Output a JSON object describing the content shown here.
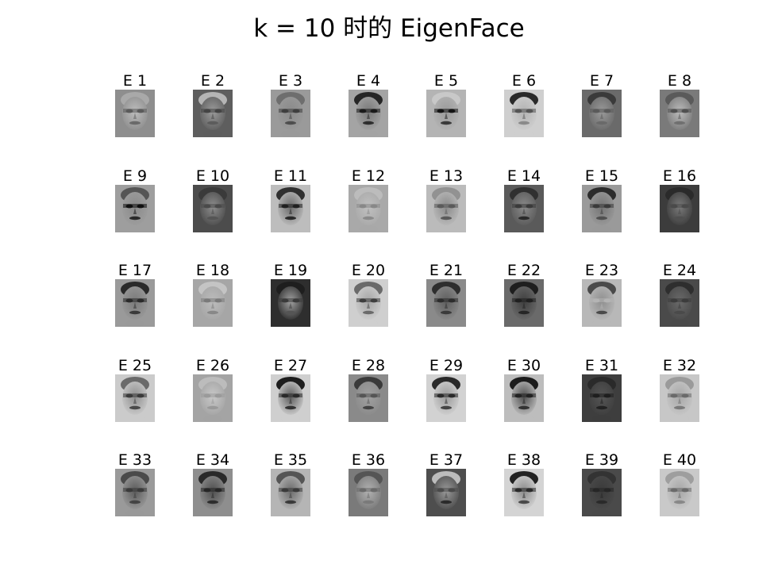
{
  "title": "k = 10 时的 EigenFace",
  "grid": {
    "rows": 5,
    "cols": 8
  },
  "faces": [
    {
      "label": "E 1",
      "bg": "#8e8e8e",
      "skin": "#bdbdbd",
      "eyes": "#5a5a5a",
      "mouth": "#6a6a6a",
      "hair": "#a9a9a9"
    },
    {
      "label": "E 2",
      "bg": "#5e5e5e",
      "skin": "#9c9c9c",
      "eyes": "#444444",
      "mouth": "#5c5c5c",
      "hair": "#b5b5b5"
    },
    {
      "label": "E 3",
      "bg": "#9a9a9a",
      "skin": "#8a8a8a",
      "eyes": "#3e3e3e",
      "mouth": "#4e4e4e",
      "hair": "#6e6e6e"
    },
    {
      "label": "E 4",
      "bg": "#a4a4a4",
      "skin": "#787878",
      "eyes": "#1a1a1a",
      "mouth": "#2e2e2e",
      "hair": "#262626"
    },
    {
      "label": "E 5",
      "bg": "#b4b4b4",
      "skin": "#9a9a9a",
      "eyes": "#141414",
      "mouth": "#3a3a3a",
      "hair": "#c8c8c8"
    },
    {
      "label": "E 6",
      "bg": "#cfcfcf",
      "skin": "#b2b2b2",
      "eyes": "#555555",
      "mouth": "#8a8a8a",
      "hair": "#2a2a2a"
    },
    {
      "label": "E 7",
      "bg": "#6a6a6a",
      "skin": "#9a9a9a",
      "eyes": "#5a5a5a",
      "mouth": "#6a6a6a",
      "hair": "#3a3a3a"
    },
    {
      "label": "E 8",
      "bg": "#7a7a7a",
      "skin": "#bcbcbc",
      "eyes": "#505050",
      "mouth": "#707070",
      "hair": "#5a5a5a"
    },
    {
      "label": "E 9",
      "bg": "#9e9e9e",
      "skin": "#8a8a8a",
      "eyes": "#101010",
      "mouth": "#2a2a2a",
      "hair": "#555555"
    },
    {
      "label": "E 10",
      "bg": "#4c4c4c",
      "skin": "#8e8e8e",
      "eyes": "#4a4a4a",
      "mouth": "#555555",
      "hair": "#3a3a3a"
    },
    {
      "label": "E 11",
      "bg": "#bdbdbd",
      "skin": "#6a6a6a",
      "eyes": "#202020",
      "mouth": "#2a2a2a",
      "hair": "#303030"
    },
    {
      "label": "E 12",
      "bg": "#a9a9a9",
      "skin": "#c0c0c0",
      "eyes": "#888888",
      "mouth": "#8a8a8a",
      "hair": "#bcbcbc"
    },
    {
      "label": "E 13",
      "bg": "#bbbbbb",
      "skin": "#8a8a8a",
      "eyes": "#5a5a5a",
      "mouth": "#5a5a5a",
      "hair": "#929292"
    },
    {
      "label": "E 14",
      "bg": "#5a5a5a",
      "skin": "#8a8a8a",
      "eyes": "#3a3a3a",
      "mouth": "#2a2a2a",
      "hair": "#303030"
    },
    {
      "label": "E 15",
      "bg": "#9a9a9a",
      "skin": "#747474",
      "eyes": "#3a3a3a",
      "mouth": "#505050",
      "hair": "#2c2c2c"
    },
    {
      "label": "E 16",
      "bg": "#3c3c3c",
      "skin": "#7a7a7a",
      "eyes": "#4a4a4a",
      "mouth": "#505050",
      "hair": "#2a2a2a"
    },
    {
      "label": "E 17",
      "bg": "#9a9a9a",
      "skin": "#7a7a7a",
      "eyes": "#2a2a2a",
      "mouth": "#3a3a3a",
      "hair": "#2a2a2a"
    },
    {
      "label": "E 18",
      "bg": "#a6a6a6",
      "skin": "#bcbcbc",
      "eyes": "#7a7a7a",
      "mouth": "#888888",
      "hair": "#c4c4c4"
    },
    {
      "label": "E 19",
      "bg": "#2e2e2e",
      "skin": "#a2a2a2",
      "eyes": "#3a3a3a",
      "mouth": "#555555",
      "hair": "#1e1e1e"
    },
    {
      "label": "E 20",
      "bg": "#cfcfcf",
      "skin": "#a5a5a5",
      "eyes": "#3e3e3e",
      "mouth": "#6a6a6a",
      "hair": "#6a6a6a"
    },
    {
      "label": "E 21",
      "bg": "#8a8a8a",
      "skin": "#5e5e5e",
      "eyes": "#2c2c2c",
      "mouth": "#3a3a3a",
      "hair": "#2e2e2e"
    },
    {
      "label": "E 22",
      "bg": "#6a6a6a",
      "skin": "#3e3e3e",
      "eyes": "#202020",
      "mouth": "#262626",
      "hair": "#1e1e1e"
    },
    {
      "label": "E 23",
      "bg": "#b8b8b8",
      "skin": "#8e8e8e",
      "eyes": "#b4b4b4",
      "mouth": "#4a4a4a",
      "hair": "#4a4a4a"
    },
    {
      "label": "E 24",
      "bg": "#4a4a4a",
      "skin": "#6a6a6a",
      "eyes": "#3c3c3c",
      "mouth": "#4a4a4a",
      "hair": "#2e2e2e"
    },
    {
      "label": "E 25",
      "bg": "#cbcbcb",
      "skin": "#8e8e8e",
      "eyes": "#3a3a3a",
      "mouth": "#4a4a4a",
      "hair": "#6a6a6a"
    },
    {
      "label": "E 26",
      "bg": "#a4a4a4",
      "skin": "#c8c8c8",
      "eyes": "#9a9a9a",
      "mouth": "#999999",
      "hair": "#bcbcbc"
    },
    {
      "label": "E 27",
      "bg": "#cfcfcf",
      "skin": "#5a5a5a",
      "eyes": "#2a2a2a",
      "mouth": "#333333",
      "hair": "#1e1e1e"
    },
    {
      "label": "E 28",
      "bg": "#8a8a8a",
      "skin": "#a0a0a0",
      "eyes": "#555555",
      "mouth": "#444444",
      "hair": "#3a3a3a"
    },
    {
      "label": "E 29",
      "bg": "#d2d2d2",
      "skin": "#9a9a9a",
      "eyes": "#2a2a2a",
      "mouth": "#444444",
      "hair": "#2a2a2a"
    },
    {
      "label": "E 30",
      "bg": "#bdbdbd",
      "skin": "#4e4e4e",
      "eyes": "#222222",
      "mouth": "#333333",
      "hair": "#1c1c1c"
    },
    {
      "label": "E 31",
      "bg": "#3e3e3e",
      "skin": "#555555",
      "eyes": "#1e1e1e",
      "mouth": "#222222",
      "hair": "#2a2a2a"
    },
    {
      "label": "E 32",
      "bg": "#c7c7c7",
      "skin": "#a7a7a7",
      "eyes": "#6a6a6a",
      "mouth": "#7a7a7a",
      "hair": "#9a9a9a"
    },
    {
      "label": "E 33",
      "bg": "#9a9a9a",
      "skin": "#5a5a5a",
      "eyes": "#3a3a3a",
      "mouth": "#444444",
      "hair": "#4a4a4a"
    },
    {
      "label": "E 34",
      "bg": "#8e8e8e",
      "skin": "#4e4e4e",
      "eyes": "#262626",
      "mouth": "#2c2c2c",
      "hair": "#2a2a2a"
    },
    {
      "label": "E 35",
      "bg": "#b5b5b5",
      "skin": "#6a6a6a",
      "eyes": "#3a3a3a",
      "mouth": "#3a3a3a",
      "hair": "#555555"
    },
    {
      "label": "E 36",
      "bg": "#7a7a7a",
      "skin": "#b2b2b2",
      "eyes": "#6a6a6a",
      "mouth": "#7a7a7a",
      "hair": "#555555"
    },
    {
      "label": "E 37",
      "bg": "#4e4e4e",
      "skin": "#9a9a9a",
      "eyes": "#4a4a4a",
      "mouth": "#2a2a2a",
      "hair": "#bcbcbc"
    },
    {
      "label": "E 38",
      "bg": "#d4d4d4",
      "skin": "#8a8a8a",
      "eyes": "#2a2a2a",
      "mouth": "#4a4a4a",
      "hair": "#222222"
    },
    {
      "label": "E 39",
      "bg": "#4a4a4a",
      "skin": "#3a3a3a",
      "eyes": "#262626",
      "mouth": "#2a2a2a",
      "hair": "#333333"
    },
    {
      "label": "E 40",
      "bg": "#c9c9c9",
      "skin": "#a6a6a6",
      "eyes": "#6a6a6a",
      "mouth": "#888888",
      "hair": "#9e9e9e"
    }
  ]
}
